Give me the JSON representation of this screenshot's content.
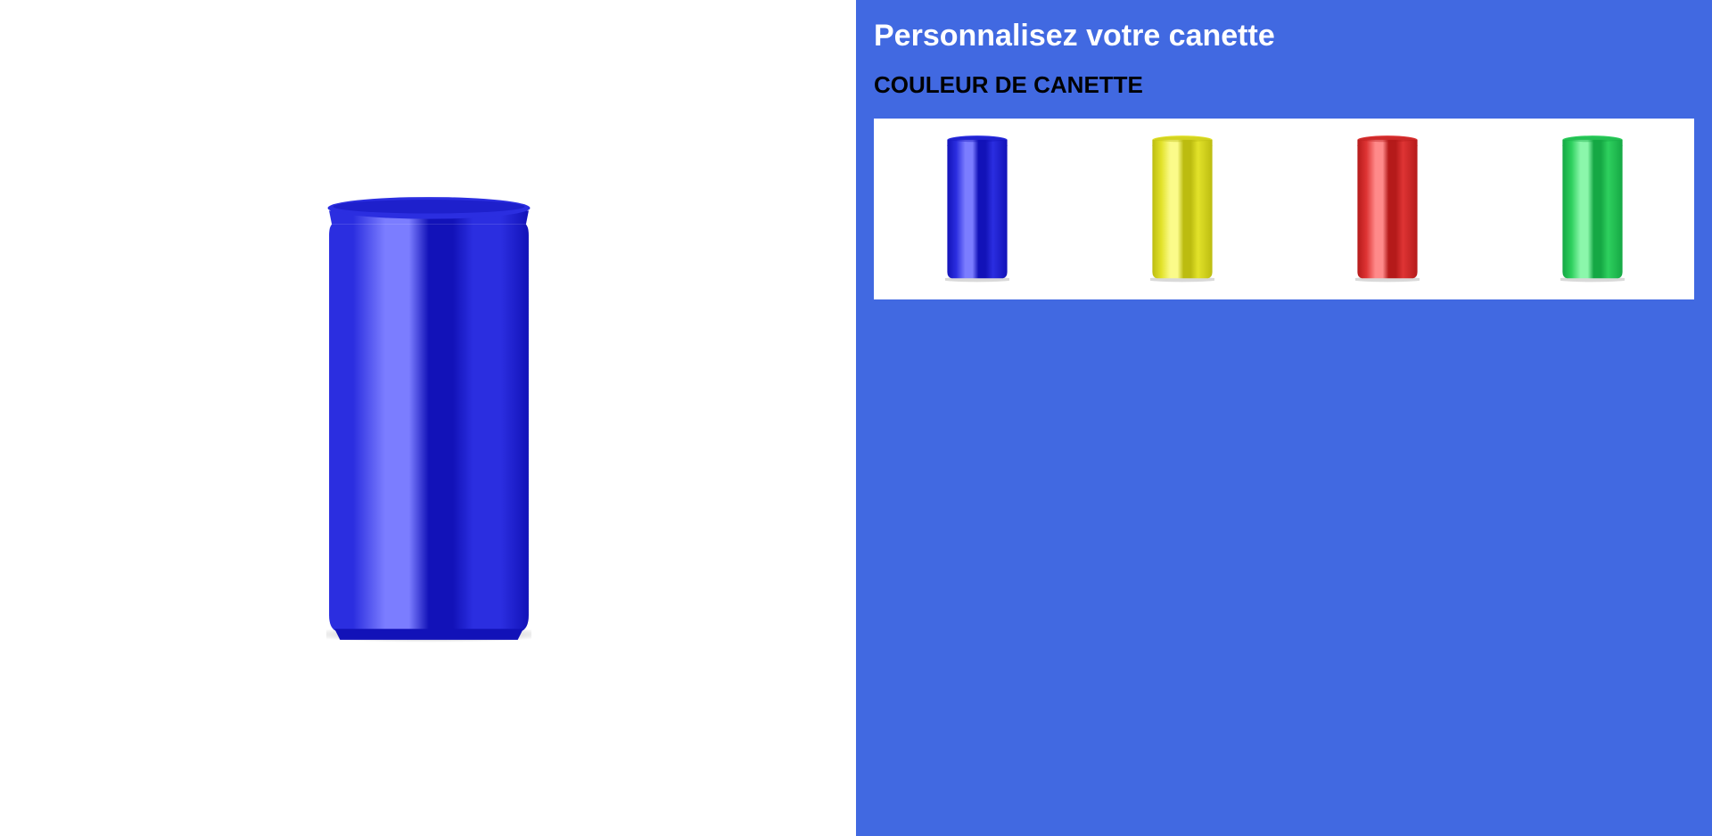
{
  "panel": {
    "title": "Personnalisez votre canette",
    "section_title": "COULEUR DE CANETTE",
    "background_color": "#4169e1"
  },
  "preview": {
    "selected_color": "blue",
    "icon": "can-icon"
  },
  "colors": [
    {
      "id": "blue",
      "base": "#2b2ee0",
      "light": "#7b7dff",
      "dark": "#1212b8",
      "selected": true
    },
    {
      "id": "yellow",
      "base": "#e2e22a",
      "light": "#fbfb8a",
      "dark": "#bcbc10",
      "selected": false
    },
    {
      "id": "red",
      "base": "#de3434",
      "light": "#ff8a8a",
      "dark": "#b51a1a",
      "selected": false
    },
    {
      "id": "green",
      "base": "#2ed05e",
      "light": "#8bf7ab",
      "dark": "#15a844",
      "selected": false
    }
  ]
}
